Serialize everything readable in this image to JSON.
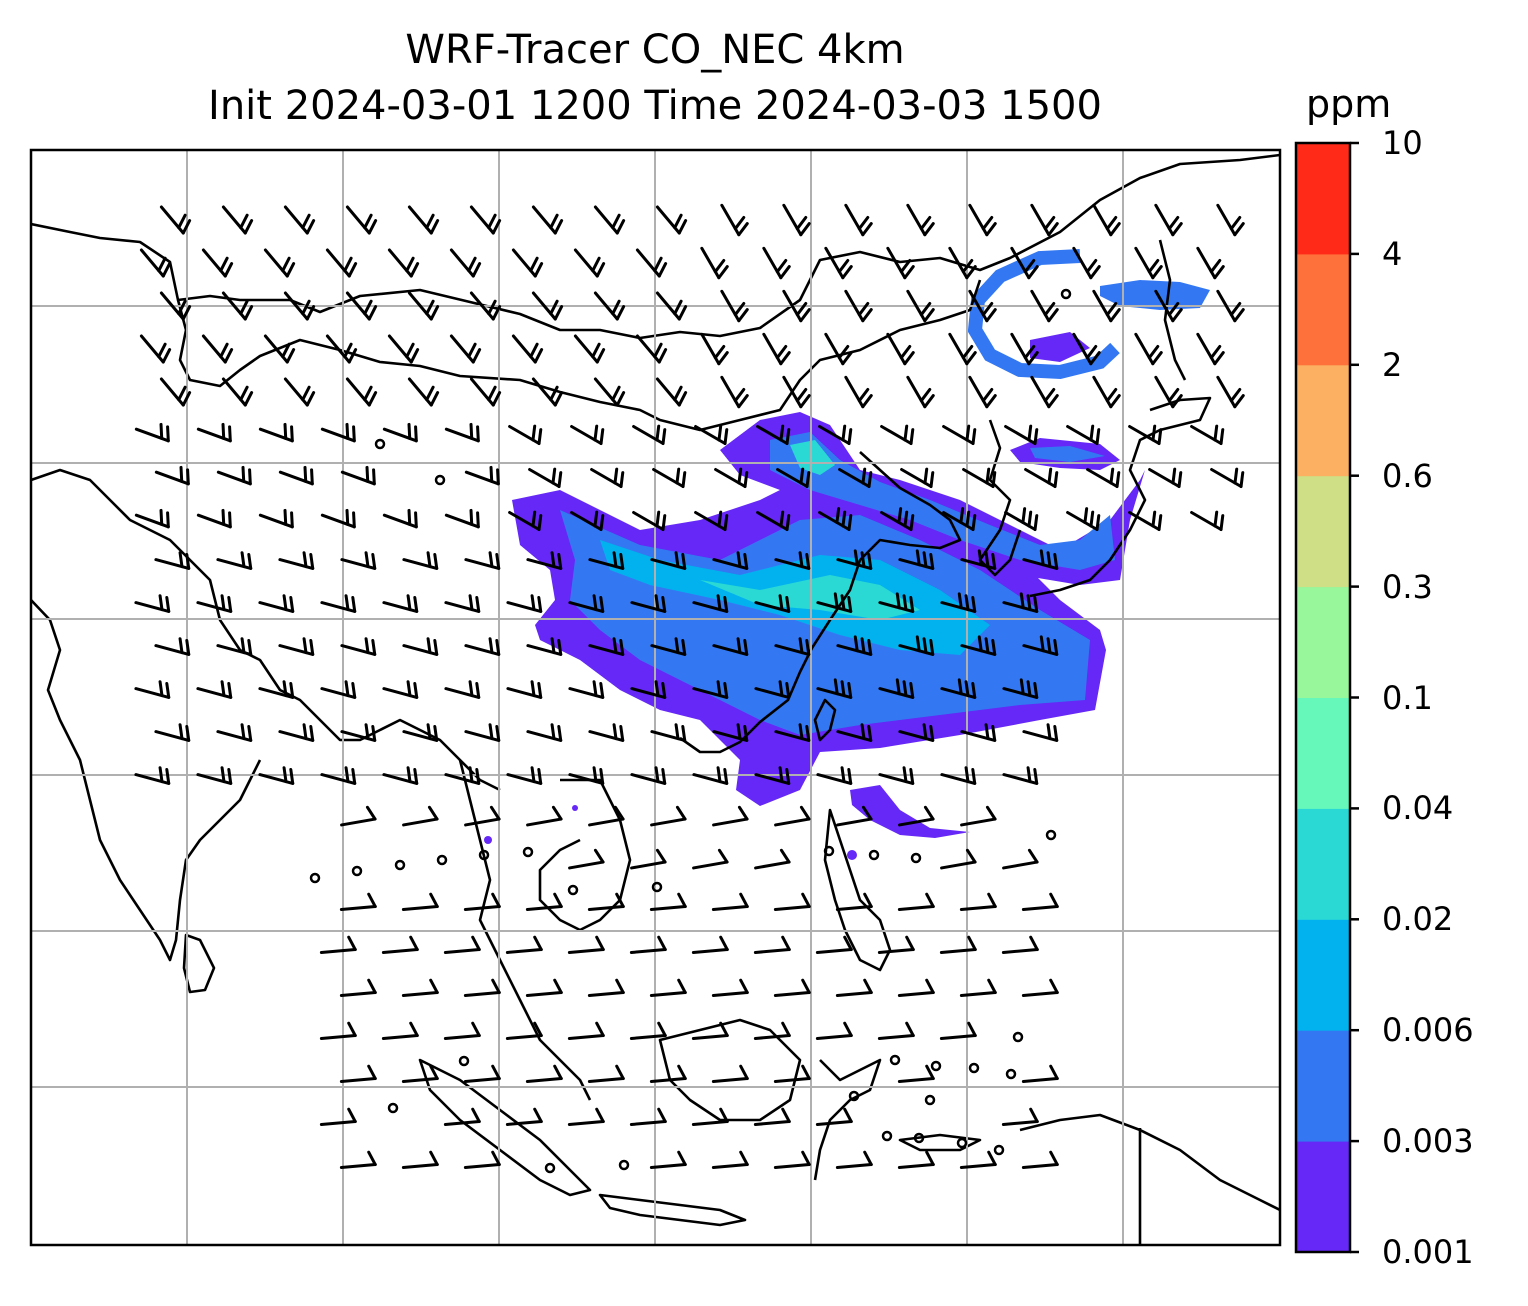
{
  "title": {
    "line1": "WRF-Tracer CO_NEC 4km",
    "line2": "Init 2024-03-01 1200 Time 2024-03-03 1500"
  },
  "colorbar": {
    "units": "ppm",
    "levels": [
      "0.001",
      "0.003",
      "0.006",
      "0.02",
      "0.04",
      "0.1",
      "0.3",
      "0.6",
      "2",
      "4",
      "10"
    ],
    "colors": [
      "#6528f7",
      "#3378f2",
      "#02b2ee",
      "#2ad9d4",
      "#66f7bb",
      "#98f79a",
      "#cedf85",
      "#fbb062",
      "#ff713b",
      "#ff2a18"
    ]
  },
  "map": {
    "gridlines": true,
    "wind_barbs": true,
    "coastlines": true
  }
}
